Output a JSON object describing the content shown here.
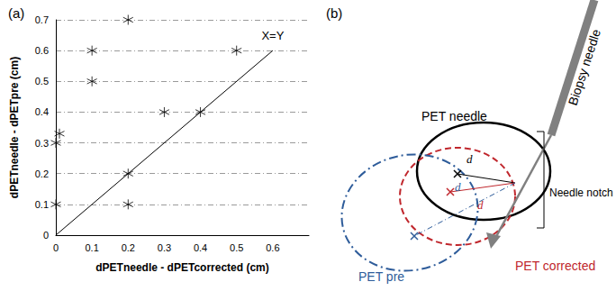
{
  "chart_data": {
    "type": "scatter",
    "title": "(a)",
    "x_label": "dPETneedle - dPETcorrected (cm)",
    "y_label": "dPETneedle - dPETpre (cm)",
    "xlim": [
      0,
      0.7
    ],
    "xticks": [
      0,
      0.1,
      0.2,
      0.3,
      0.4,
      0.5,
      0.6
    ],
    "ylim": [
      0,
      0.7
    ],
    "yticks": [
      0,
      0.1,
      0.2,
      0.3,
      0.4,
      0.5,
      0.6,
      0.7
    ],
    "grid": true,
    "series": [
      {
        "type": "scatter",
        "color": "#000000",
        "marker": "asterisk",
        "x": [
          0,
          0,
          0.01,
          0.1,
          0.1,
          0.2,
          0.2,
          0.2,
          0.3,
          0.4,
          0.5
        ],
        "values": [
          0.1,
          0.3,
          0.33,
          0.6,
          0.5,
          0.7,
          0.2,
          0.1,
          0.4,
          0.4,
          0.6
        ]
      },
      {
        "type": "line",
        "name": "X=Y",
        "color": "#000000",
        "line_style": "solid",
        "x": [
          0,
          0.6
        ],
        "values": [
          0,
          0.6
        ]
      }
    ]
  },
  "diagram": {
    "label": "(b)",
    "needle": "Biopsy needle",
    "notch": "Needle notch",
    "regions": [
      {
        "label": "PET needle",
        "color": "#000000",
        "line_style": "solid",
        "distance": "d"
      },
      {
        "label": "PET corrected",
        "color": "#c0272d",
        "line_style": "dashed",
        "distance": "d"
      },
      {
        "label": "PET pre",
        "color": "#2e5c9a",
        "line_style": "dashdot",
        "distance": "d"
      }
    ]
  }
}
